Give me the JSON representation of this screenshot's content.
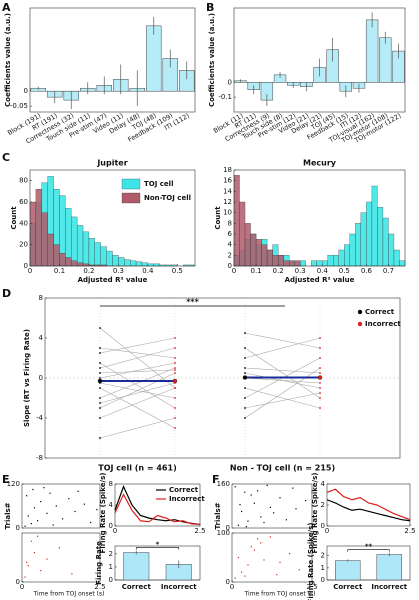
{
  "chart_data": [
    {
      "type": "bar",
      "panel": "A",
      "ylabel": "Coefficients value (a.u.)",
      "categories": [
        "Block (191)",
        "RT (191)",
        "Correctness (32)",
        "Touch side (11)",
        "Pre-stim (47)",
        "Video (11)",
        "Delay (48)",
        "TOJ (48)",
        "Feedback (109)",
        "ITI (112)"
      ],
      "values": [
        0.01,
        -0.02,
        -0.03,
        0.01,
        0.02,
        0.04,
        0.01,
        0.22,
        0.11,
        0.07
      ],
      "errors": [
        0.005,
        0.02,
        0.03,
        0.02,
        0.03,
        0.05,
        0.06,
        0.03,
        0.03,
        0.03
      ],
      "color": "#b5ecf7",
      "ylim": [
        -0.07,
        0.28
      ],
      "yticks": [
        -0.05,
        0
      ]
    },
    {
      "type": "bar",
      "panel": "B",
      "ylabel": "Coefficients value (a.u.)",
      "categories": [
        "Block (11)",
        "RT (11)",
        "Correctness (9)",
        "Touch side (8)",
        "Pre-stim (12)",
        "Video (21)",
        "Delay (21)",
        "TOJ (45)",
        "Feedback (15)",
        "ITI (12)",
        "TOJ-visual (162)",
        "TOJ-motor (108)",
        "TOJ-motor (122)"
      ],
      "values": [
        0.01,
        -0.05,
        -0.12,
        0.05,
        -0.02,
        -0.03,
        0.1,
        0.22,
        -0.06,
        -0.04,
        0.42,
        0.3,
        0.21
      ],
      "errors": [
        0.01,
        0.03,
        0.04,
        0.02,
        0.02,
        0.03,
        0.06,
        0.08,
        0.04,
        0.03,
        0.05,
        0.04,
        0.05
      ],
      "color": "#b5ecf7",
      "ylim": [
        -0.2,
        0.5
      ],
      "yticks": [
        -0.1,
        0
      ]
    },
    {
      "type": "histogram",
      "panel": "C",
      "title": "Jupiter",
      "xlabel": "Adjusted R² value",
      "ylabel": "Count",
      "bins": [
        0,
        0.02,
        0.04,
        0.06,
        0.08,
        0.1,
        0.12,
        0.14,
        0.16,
        0.18,
        0.2,
        0.22,
        0.24,
        0.26,
        0.28,
        0.3,
        0.32,
        0.34,
        0.36,
        0.38,
        0.4,
        0.42,
        0.44,
        0.46,
        0.48,
        0.5,
        0.52,
        0.54,
        0.56
      ],
      "series": [
        {
          "name": "TOJ cell",
          "color": "#3de6e6",
          "values": [
            40,
            60,
            78,
            84,
            72,
            66,
            54,
            46,
            38,
            32,
            26,
            22,
            18,
            14,
            10,
            8,
            6,
            5,
            4,
            3,
            2,
            2,
            1,
            1,
            1,
            0,
            1,
            1
          ]
        },
        {
          "name": "Non-TOJ cell",
          "color": "#b05a6a",
          "values": [
            60,
            72,
            50,
            30,
            20,
            12,
            8,
            5,
            3,
            2,
            1,
            1,
            1,
            0,
            0,
            0,
            0,
            0,
            0,
            0,
            0,
            0,
            0,
            0,
            0,
            0,
            0,
            0
          ]
        }
      ],
      "xlim": [
        0,
        0.56
      ],
      "xticks": [
        0,
        0.1,
        0.2,
        0.3,
        0.4,
        0.5
      ],
      "ylim": [
        0,
        90
      ],
      "yticks": [
        0,
        20,
        40,
        60,
        80
      ]
    },
    {
      "type": "histogram",
      "title": "Mecury",
      "xlabel": "Adjusted R² value",
      "ylabel": "Count",
      "bins": [
        0,
        0.025,
        0.05,
        0.075,
        0.1,
        0.125,
        0.15,
        0.175,
        0.2,
        0.225,
        0.25,
        0.275,
        0.3,
        0.325,
        0.35,
        0.375,
        0.4,
        0.425,
        0.45,
        0.475,
        0.5,
        0.525,
        0.55,
        0.575,
        0.6,
        0.625,
        0.65,
        0.675,
        0.7,
        0.725,
        0.75,
        0.775
      ],
      "series": [
        {
          "color": "#3de6e6",
          "values": [
            2,
            3,
            5,
            6,
            4,
            5,
            3,
            4,
            2,
            2,
            1,
            1,
            1,
            0,
            1,
            1,
            1,
            2,
            2,
            3,
            4,
            6,
            8,
            10,
            12,
            15,
            11,
            9,
            6,
            3,
            1
          ]
        },
        {
          "color": "#b05a6a",
          "values": [
            17,
            12,
            8,
            6,
            5,
            4,
            3,
            2,
            2,
            1,
            1,
            1,
            0,
            0,
            0,
            0,
            0,
            0,
            0,
            0,
            0,
            0,
            0,
            0,
            0,
            0,
            0,
            0,
            0,
            0,
            0
          ]
        }
      ],
      "xlim": [
        0,
        0.775
      ],
      "xticks": [
        0,
        0.1,
        0.2,
        0.3,
        0.4,
        0.5,
        0.6,
        0.7
      ],
      "ylim": [
        0,
        18
      ],
      "yticks": [
        0,
        2,
        4,
        6,
        8,
        10,
        12,
        14,
        16,
        18
      ]
    },
    {
      "type": "slope",
      "panel": "D",
      "ylabel": "Slope (RT vs Firing Rate)",
      "annotation": "***",
      "series": [
        {
          "name": "Correct",
          "color": "#000000"
        },
        {
          "name": "Incorrect",
          "color": "#e0201c"
        }
      ],
      "groups": [
        {
          "label": "TOJ cell (n = 461)",
          "mean": [
            -0.3,
            -0.3
          ],
          "pairs": [
            [
              -2,
              1
            ],
            [
              1.5,
              -3
            ],
            [
              0.5,
              0.8
            ],
            [
              -4,
              -1
            ],
            [
              3,
              2
            ],
            [
              -1,
              -5
            ],
            [
              2.5,
              4
            ],
            [
              -0.5,
              -2
            ],
            [
              0,
              1.5
            ],
            [
              -3,
              0.5
            ],
            [
              5,
              -1
            ],
            [
              -6,
              -4
            ],
            [
              1,
              3
            ],
            [
              -2.5,
              -0.5
            ]
          ]
        },
        {
          "label": "Non - TOJ cell (n = 215)",
          "mean": [
            0.05,
            0.05
          ],
          "pairs": [
            [
              0.5,
              -1
            ],
            [
              -2,
              2
            ],
            [
              1,
              0.5
            ],
            [
              3,
              -2
            ],
            [
              -1,
              -3
            ],
            [
              2,
              4
            ],
            [
              -4,
              1
            ],
            [
              0,
              -0.5
            ],
            [
              4.5,
              3
            ],
            [
              -3,
              -1.5
            ]
          ]
        }
      ],
      "mean_color": "#1a2a9a",
      "ylim": [
        -8,
        8
      ],
      "yticks": [
        -8,
        -4,
        0,
        4,
        8
      ]
    },
    {
      "type": "raster",
      "panel": "E",
      "ylabel": "Trials#",
      "xlabel": "Time from TOJ onset (s)",
      "xlim": [
        0,
        2.5
      ],
      "xticks": [
        0,
        2.5
      ],
      "series": [
        {
          "color": "#000000",
          "ylim": [
            0,
            120
          ],
          "yticks": [
            0,
            120
          ],
          "points": [
            [
              0.1,
              5
            ],
            [
              0.3,
              12
            ],
            [
              0.5,
              20
            ],
            [
              0.2,
              33
            ],
            [
              0.8,
              40
            ],
            [
              0.4,
              55
            ],
            [
              1.1,
              60
            ],
            [
              0.6,
              72
            ],
            [
              1.5,
              80
            ],
            [
              0.9,
              95
            ],
            [
              1.8,
              100
            ],
            [
              0.7,
              110
            ],
            [
              2.2,
              15
            ],
            [
              1.3,
              25
            ],
            [
              0.15,
              88
            ],
            [
              2.0,
              65
            ],
            [
              1.7,
              45
            ],
            [
              0.35,
              105
            ],
            [
              1.0,
              8
            ],
            [
              2.4,
              50
            ]
          ]
        },
        {
          "color": "#e02020",
          "ylim": [
            0,
            30
          ],
          "yticks": [
            0
          ],
          "points": [
            [
              0.1,
              3
            ],
            [
              0.2,
              10
            ],
            [
              0.4,
              18
            ],
            [
              0.3,
              25
            ],
            [
              0.6,
              7
            ],
            [
              0.8,
              14
            ],
            [
              1.2,
              21
            ],
            [
              0.5,
              28
            ],
            [
              1.6,
              5
            ],
            [
              0.15,
              12
            ]
          ]
        }
      ]
    },
    {
      "type": "line",
      "ylabel": "Firing Rate (Spike/s)",
      "x": [
        0,
        0.25,
        0.5,
        0.75,
        1,
        1.25,
        1.5,
        1.75,
        2,
        2.25,
        2.5
      ],
      "series": [
        {
          "name": "Correct",
          "color": "#000000",
          "values": [
            3,
            7.5,
            4,
            2,
            1.5,
            1.2,
            1,
            1.2,
            0.8,
            0.5,
            0.3
          ]
        },
        {
          "name": "Incorrect",
          "color": "#e0201c",
          "values": [
            2.5,
            6,
            3,
            1,
            0.8,
            2,
            1.5,
            0.8,
            1,
            0.4,
            0.3
          ]
        }
      ],
      "xlim": [
        0,
        2.5
      ],
      "xticks": [
        0,
        2.5
      ],
      "ylim": [
        0,
        8
      ],
      "yticks": [
        0,
        4,
        8
      ]
    },
    {
      "type": "bar",
      "ylabel": "Firing Rate",
      "annotation": "*",
      "categories": [
        "Correct",
        "Incorrect"
      ],
      "values": [
        2.1,
        1.2
      ],
      "errors": [
        0.15,
        0.3
      ],
      "color": "#aee8f8",
      "ylim": [
        0,
        2.6
      ],
      "yticks": [
        0,
        1,
        2
      ]
    },
    {
      "type": "raster",
      "panel": "F",
      "ylabel": "Trials#",
      "xlabel": "Time from TOJ onset (s)",
      "xlim": [
        0,
        2.5
      ],
      "xticks": [
        0,
        2.5
      ],
      "series": [
        {
          "color": "#000000",
          "ylim": [
            0,
            160
          ],
          "yticks": [
            0,
            160
          ],
          "points": [
            [
              0.2,
              10
            ],
            [
              0.5,
              25
            ],
            [
              0.9,
              40
            ],
            [
              0.3,
              60
            ],
            [
              1.2,
              75
            ],
            [
              0.7,
              90
            ],
            [
              1.5,
              110
            ],
            [
              0.4,
              130
            ],
            [
              1.9,
              145
            ],
            [
              0.1,
              150
            ],
            [
              1.0,
              20
            ],
            [
              0.6,
              120
            ],
            [
              1.3,
              55
            ],
            [
              2.3,
              100
            ],
            [
              0.8,
              135
            ],
            [
              1.7,
              30
            ],
            [
              0.25,
              85
            ],
            [
              2.0,
              70
            ],
            [
              1.1,
              155
            ],
            [
              0.45,
              5
            ]
          ]
        },
        {
          "color": "#e02020",
          "ylim": [
            0,
            100
          ],
          "yticks": [
            0,
            100
          ],
          "points": [
            [
              0.1,
              8
            ],
            [
              0.3,
              20
            ],
            [
              0.5,
              35
            ],
            [
              0.2,
              50
            ],
            [
              0.7,
              65
            ],
            [
              0.9,
              80
            ],
            [
              1.2,
              92
            ],
            [
              0.4,
              12
            ],
            [
              1.5,
              40
            ],
            [
              1.8,
              58
            ],
            [
              0.6,
              72
            ],
            [
              2.1,
              25
            ],
            [
              1.0,
              45
            ],
            [
              0.8,
              88
            ],
            [
              1.4,
              15
            ]
          ]
        }
      ]
    },
    {
      "type": "line",
      "ylabel": "Firing Rate (Spike/s)",
      "x": [
        0,
        0.25,
        0.5,
        0.75,
        1,
        1.25,
        1.5,
        1.75,
        2,
        2.25,
        2.5
      ],
      "series": [
        {
          "color": "#000000",
          "values": [
            2.5,
            2.2,
            1.8,
            1.5,
            1.6,
            1.4,
            1.2,
            1,
            0.8,
            0.6,
            0.5
          ]
        },
        {
          "color": "#e0201c",
          "values": [
            3.2,
            3.5,
            2.8,
            2.5,
            2.7,
            2.2,
            2,
            1.6,
            1.2,
            0.9,
            0.6
          ]
        }
      ],
      "xlim": [
        0,
        2.5
      ],
      "xticks": [
        0,
        2.5
      ],
      "ylim": [
        0,
        4
      ],
      "yticks": [
        0,
        2,
        4
      ]
    },
    {
      "type": "bar",
      "ylabel": "Firing Rate (Spike/s)",
      "annotation": "**",
      "categories": [
        "Correct",
        "Incorrect"
      ],
      "values": [
        1.6,
        2.1
      ],
      "errors": [
        0.1,
        0.15
      ],
      "color": "#aee8f8",
      "ylim": [
        0,
        2.8
      ],
      "yticks": [
        0,
        1,
        2
      ]
    }
  ]
}
